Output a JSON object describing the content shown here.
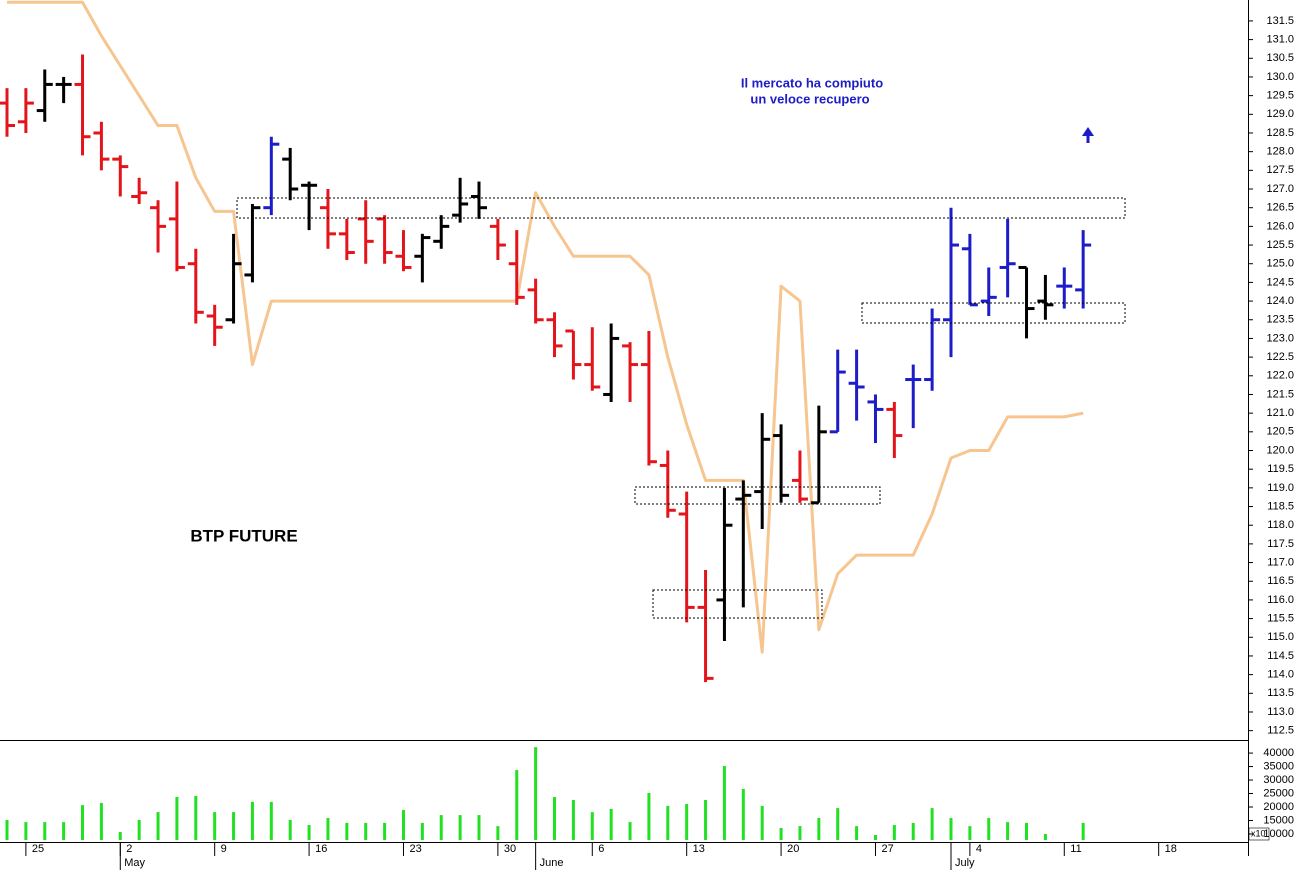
{
  "chart_data": {
    "type": "ohlc",
    "title": "BTP FUTURE",
    "annotation": [
      "Il mercato ha compiuto",
      "un veloce recupero"
    ],
    "categories": [
      null,
      "25",
      null,
      null,
      null,
      null,
      "2",
      null,
      null,
      null,
      null,
      "9",
      null,
      null,
      null,
      null,
      "16",
      null,
      null,
      null,
      null,
      "23",
      null,
      null,
      null,
      null,
      "30",
      null,
      null,
      null,
      null,
      "6",
      null,
      null,
      null,
      null,
      "13",
      null,
      null,
      null,
      null,
      "20",
      null,
      null,
      null,
      null,
      "27",
      null,
      null,
      null,
      null,
      "4",
      null,
      null,
      null,
      null,
      "11",
      null,
      null,
      null,
      null,
      "18",
      null,
      null,
      null,
      null
    ],
    "months": [
      null,
      null,
      null,
      null,
      null,
      null,
      "May",
      null,
      null,
      null,
      null,
      null,
      null,
      null,
      null,
      null,
      null,
      null,
      null,
      null,
      null,
      null,
      null,
      null,
      null,
      null,
      null,
      null,
      "June",
      null,
      null,
      null,
      null,
      null,
      null,
      null,
      null,
      null,
      null,
      null,
      null,
      null,
      null,
      null,
      null,
      null,
      null,
      null,
      null,
      null,
      "July",
      null,
      null,
      null,
      null,
      null,
      null,
      null,
      null,
      null,
      null,
      null,
      null,
      null,
      null,
      null
    ],
    "open": [
      129.3,
      128.8,
      129.1,
      129.8,
      129.8,
      128.5,
      127.8,
      126.8,
      126.5,
      126.2,
      125.0,
      123.6,
      123.5,
      124.7,
      126.5,
      127.8,
      127.1,
      126.5,
      125.8,
      126.2,
      126.2,
      125.2,
      125.2,
      125.6,
      126.3,
      126.8,
      126.0,
      125.0,
      124.3,
      123.5,
      123.2,
      122.3,
      121.5,
      122.8,
      122.3,
      119.6,
      118.3,
      115.8,
      116.0,
      118.7,
      118.9,
      120.4,
      119.2,
      118.6,
      120.5,
      121.8,
      121.3,
      121.1,
      121.9,
      121.9,
      123.5,
      125.4,
      124.0,
      124.9,
      124.9,
      124.0,
      124.4,
      124.3,
      null,
      null,
      null,
      null,
      null,
      null,
      null,
      null
    ],
    "high": [
      129.7,
      129.7,
      130.2,
      130.0,
      130.6,
      128.8,
      127.9,
      127.3,
      126.7,
      127.2,
      125.4,
      123.9,
      125.8,
      126.6,
      128.4,
      128.1,
      127.2,
      127.0,
      126.2,
      126.7,
      126.3,
      125.9,
      125.8,
      126.3,
      127.3,
      127.2,
      126.2,
      125.9,
      124.6,
      123.7,
      123.2,
      123.3,
      123.4,
      122.9,
      123.2,
      120.0,
      118.9,
      116.8,
      119.0,
      119.2,
      121.0,
      120.7,
      120.0,
      121.2,
      122.7,
      122.7,
      121.5,
      121.3,
      122.3,
      123.8,
      126.5,
      125.8,
      124.9,
      126.2,
      124.9,
      124.7,
      124.9,
      125.9,
      null,
      null,
      null,
      null,
      null,
      null,
      null,
      null
    ],
    "low": [
      128.4,
      128.5,
      128.8,
      129.3,
      127.9,
      127.5,
      126.8,
      126.6,
      125.3,
      124.8,
      123.4,
      122.8,
      123.4,
      124.5,
      126.3,
      126.7,
      125.9,
      125.4,
      125.1,
      125.0,
      125.0,
      124.8,
      124.5,
      125.4,
      126.1,
      126.2,
      125.1,
      123.9,
      123.4,
      122.5,
      121.9,
      121.6,
      121.3,
      121.3,
      119.6,
      118.2,
      115.4,
      113.8,
      114.9,
      115.8,
      117.9,
      118.6,
      118.6,
      118.6,
      120.5,
      120.8,
      120.2,
      119.8,
      120.6,
      121.6,
      122.5,
      123.9,
      123.6,
      124.1,
      123.0,
      123.5,
      123.8,
      123.8,
      null,
      null,
      null,
      null,
      null,
      null,
      null,
      null
    ],
    "close": [
      128.7,
      129.3,
      129.8,
      129.8,
      128.4,
      127.8,
      127.6,
      126.9,
      126.0,
      124.9,
      123.7,
      123.3,
      125.0,
      126.5,
      128.2,
      127.0,
      127.1,
      125.8,
      125.3,
      125.6,
      125.3,
      124.9,
      125.7,
      126.0,
      126.6,
      126.5,
      125.5,
      124.1,
      123.5,
      122.8,
      122.3,
      121.7,
      123.0,
      122.3,
      119.7,
      118.4,
      115.8,
      113.9,
      118.0,
      118.8,
      120.3,
      118.8,
      118.7,
      120.5,
      122.1,
      121.7,
      121.1,
      120.4,
      121.9,
      123.5,
      125.5,
      123.9,
      124.1,
      125.0,
      123.8,
      123.9,
      124.4,
      125.5,
      null,
      null,
      null,
      null,
      null,
      null,
      null,
      null
    ],
    "bar_colors": [
      "#e4141b",
      "#e4141b",
      "#000000",
      "#000000",
      "#e4141b",
      "#e4141b",
      "#e4141b",
      "#e4141b",
      "#e4141b",
      "#e4141b",
      "#e4141b",
      "#e4141b",
      "#000000",
      "#000000",
      "#1c1cc8",
      "#000000",
      "#000000",
      "#e4141b",
      "#e4141b",
      "#e4141b",
      "#e4141b",
      "#e4141b",
      "#000000",
      "#000000",
      "#000000",
      "#000000",
      "#e4141b",
      "#e4141b",
      "#e4141b",
      "#e4141b",
      "#e4141b",
      "#e4141b",
      "#000000",
      "#e4141b",
      "#e4141b",
      "#e4141b",
      "#e4141b",
      "#e4141b",
      "#000000",
      "#000000",
      "#000000",
      "#000000",
      "#e4141b",
      "#000000",
      "#1c1cc8",
      "#1c1cc8",
      "#1c1cc8",
      "#e4141b",
      "#1c1cc8",
      "#1c1cc8",
      "#1c1cc8",
      "#1c1cc8",
      "#1c1cc8",
      "#1c1cc8",
      "#000000",
      "#000000",
      "#1c1cc8",
      "#1c1cc8",
      null,
      null,
      null,
      null,
      null,
      null,
      null,
      null
    ],
    "stop_line": {
      "color": "#f6c590",
      "values": [
        132.0,
        132.0,
        132.0,
        132.0,
        132.0,
        131.1,
        130.3,
        129.5,
        128.7,
        128.7,
        127.3,
        126.4,
        126.4,
        122.3,
        124.0,
        124.0,
        124.0,
        124.0,
        124.0,
        124.0,
        124.0,
        124.0,
        124.0,
        124.0,
        124.0,
        124.0,
        124.0,
        124.0,
        126.9,
        126.0,
        125.2,
        125.2,
        125.2,
        125.2,
        124.7,
        122.5,
        120.7,
        119.2,
        119.2,
        119.2,
        114.6,
        124.4,
        124.0,
        115.2,
        116.7,
        117.2,
        117.2,
        117.2,
        117.2,
        118.3,
        119.8,
        120.0,
        120.0,
        120.9,
        120.9,
        120.9,
        120.9,
        121.0,
        null,
        null,
        null,
        null,
        null,
        null,
        null,
        null
      ]
    },
    "ylim": [
      112.25,
      132.06
    ],
    "yticks": [
      112.5,
      {
        "value": 113,
        "label": "113.0"
      },
      113.5,
      {
        "value": 114,
        "label": "114.0"
      },
      114.5,
      {
        "value": 115,
        "label": "115.0"
      },
      115.5,
      {
        "value": 116,
        "label": "116.0"
      },
      116.5,
      {
        "value": 117,
        "label": "117.0"
      },
      117.5,
      {
        "value": 118,
        "label": "118.0"
      },
      118.5,
      {
        "value": 119,
        "label": "119.0"
      },
      119.5,
      {
        "value": 120,
        "label": "120.0"
      },
      120.5,
      {
        "value": 121,
        "label": "121.0"
      },
      121.5,
      {
        "value": 122,
        "label": "122.0"
      },
      122.5,
      {
        "value": 123,
        "label": "123.0"
      },
      123.5,
      {
        "value": 124,
        "label": "124.0"
      },
      124.5,
      {
        "value": 125,
        "label": "125.0"
      },
      125.5,
      {
        "value": 126,
        "label": "126.0"
      },
      126.5,
      {
        "value": 127,
        "label": "127.0"
      },
      127.5,
      {
        "value": 128,
        "label": "128.0"
      },
      128.5,
      {
        "value": 129,
        "label": "129.0"
      },
      129.5,
      {
        "value": 130,
        "label": "130.0"
      },
      130.5,
      {
        "value": 131,
        "label": "131.0"
      },
      131.5
    ],
    "volume": {
      "color": "#22e022",
      "unit_label": "x10",
      "values": [
        15200,
        14400,
        14400,
        14400,
        20700,
        21500,
        10700,
        15200,
        18100,
        23700,
        24100,
        18100,
        18100,
        21900,
        21900,
        15200,
        13300,
        15900,
        14100,
        14100,
        14100,
        18900,
        14100,
        17000,
        17000,
        17000,
        12900,
        33700,
        42200,
        23700,
        22600,
        18100,
        19300,
        14400,
        25200,
        20400,
        21100,
        22600,
        35200,
        26700,
        20400,
        12200,
        12900,
        15900,
        19600,
        12900,
        9600,
        13300,
        14100,
        19600,
        15900,
        12900,
        15900,
        14400,
        14100,
        10000,
        null,
        14100,
        null,
        null,
        null,
        null,
        null,
        null,
        null,
        null
      ],
      "ylim": [
        7760,
        44850
      ],
      "yticks": [
        10000,
        15000,
        20000,
        25000,
        30000,
        35000,
        40000
      ]
    }
  }
}
